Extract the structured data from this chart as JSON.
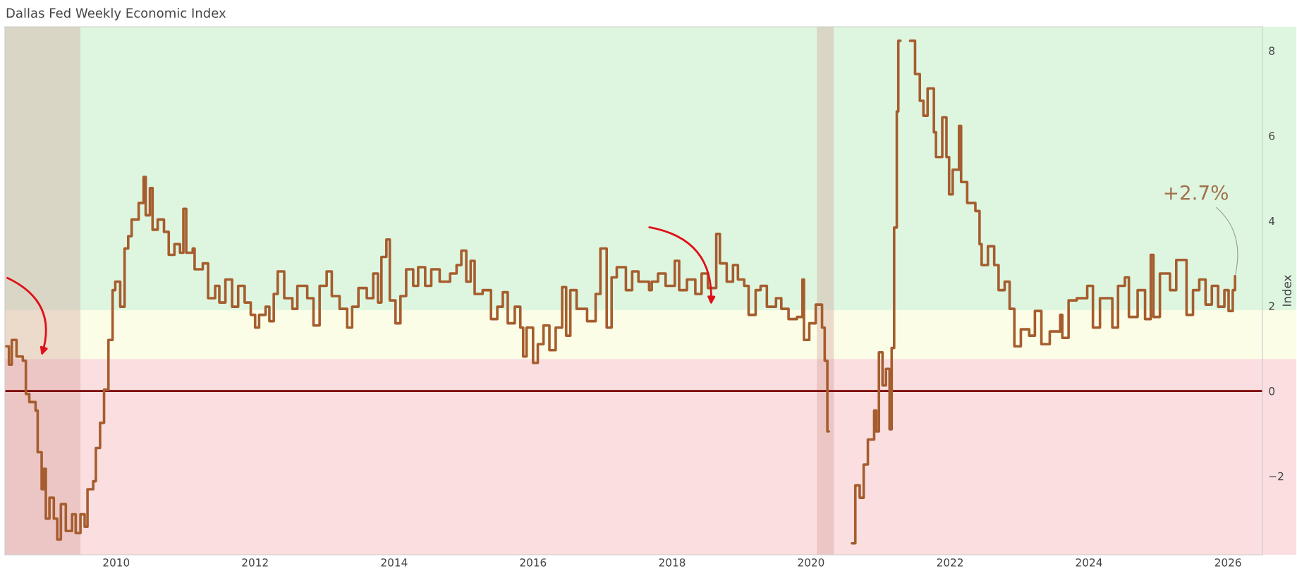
{
  "chart_data": {
    "type": "step",
    "title": "Dallas Fed Weekly Economic Index",
    "ylabel": "Index",
    "x": [
      "2008-06-02",
      "2008-06-16",
      "2008-07-01",
      "2008-07-26",
      "2008-08-28",
      "2008-09-13",
      "2008-10-01",
      "2008-11-03",
      "2008-11-14",
      "2008-12-05",
      "2008-12-16",
      "2008-12-27",
      "2009-01-15",
      "2009-02-07",
      "2009-02-25",
      "2009-03-16",
      "2009-04-11",
      "2009-05-14",
      "2009-06-02",
      "2009-06-27",
      "2009-07-19",
      "2009-08-03",
      "2009-09-02",
      "2009-09-16",
      "2009-10-08",
      "2009-10-29",
      "2009-11-21",
      "2009-12-13",
      "2009-12-27",
      "2010-01-22",
      "2010-02-14",
      "2010-03-05",
      "2010-03-23",
      "2010-04-29",
      "2010-05-25",
      "2010-06-05",
      "2010-06-27",
      "2010-07-11",
      "2010-08-07",
      "2010-09-09",
      "2010-10-04",
      "2010-11-03",
      "2010-12-02",
      "2010-12-20",
      "2011-01-04",
      "2011-02-07",
      "2011-02-17",
      "2011-04-01",
      "2011-04-29",
      "2011-06-05",
      "2011-06-27",
      "2011-07-29",
      "2011-09-02",
      "2011-10-04",
      "2011-11-07",
      "2011-12-09",
      "2012-01-01",
      "2012-01-22",
      "2012-02-25",
      "2012-03-16",
      "2012-04-08",
      "2012-04-29",
      "2012-06-02",
      "2012-07-15",
      "2012-08-10",
      "2012-10-01",
      "2012-11-03",
      "2012-12-05",
      "2013-01-11",
      "2013-02-07",
      "2013-03-20",
      "2013-04-29",
      "2013-05-25",
      "2013-06-27",
      "2013-08-10",
      "2013-09-13",
      "2013-10-08",
      "2013-10-26",
      "2013-11-21",
      "2013-12-09",
      "2014-01-08",
      "2014-02-03",
      "2014-03-05",
      "2014-04-11",
      "2014-05-07",
      "2014-06-13",
      "2014-07-15",
      "2014-08-28",
      "2014-10-22",
      "2014-11-25",
      "2014-12-20",
      "2015-01-15",
      "2015-02-07",
      "2015-02-28",
      "2015-04-11",
      "2015-05-25",
      "2015-06-27",
      "2015-07-26",
      "2015-08-21",
      "2015-09-27",
      "2015-10-26",
      "2015-11-10",
      "2015-11-28",
      "2016-01-01",
      "2016-01-26",
      "2016-02-25",
      "2016-03-27",
      "2016-04-29",
      "2016-06-02",
      "2016-06-23",
      "2016-07-15",
      "2016-08-17",
      "2016-10-11",
      "2016-11-25",
      "2016-12-20",
      "2017-01-22",
      "2017-02-17",
      "2017-03-16",
      "2017-05-03",
      "2017-06-05",
      "2017-07-08",
      "2017-09-02",
      "2017-09-16",
      "2017-10-19",
      "2017-11-28",
      "2018-01-15",
      "2018-02-07",
      "2018-03-20",
      "2018-05-03",
      "2018-06-05",
      "2018-07-08",
      "2018-08-21",
      "2018-09-09",
      "2018-10-15",
      "2018-11-17",
      "2018-12-13",
      "2019-01-15",
      "2019-02-07",
      "2019-03-16",
      "2019-04-11",
      "2019-05-14",
      "2019-07-01",
      "2019-07-29",
      "2019-09-05",
      "2019-10-19",
      "2019-11-17",
      "2019-11-25",
      "2019-12-23",
      "2020-01-26",
      "2020-02-28",
      "2020-03-13",
      "2020-03-27",
      "2020-04-04",
      "2020-08-03",
      "2020-08-21",
      "2020-09-13",
      "2020-10-04",
      "2020-10-26",
      "2020-11-28",
      "2020-12-09",
      "2020-12-23",
      "2021-01-11",
      "2021-01-29",
      "2021-02-17",
      "2021-02-28",
      "2021-03-13",
      "2021-03-27",
      "2021-04-04",
      "2021-04-15",
      "2021-06-05",
      "2021-07-01",
      "2021-07-26",
      "2021-08-14",
      "2021-09-05",
      "2021-10-08",
      "2021-10-19",
      "2021-11-21",
      "2021-12-13",
      "2021-12-27",
      "2022-01-15",
      "2022-02-17",
      "2022-02-28",
      "2022-04-01",
      "2022-05-14",
      "2022-06-05",
      "2022-06-16",
      "2022-07-19",
      "2022-08-21",
      "2022-09-13",
      "2022-10-15",
      "2022-11-10",
      "2022-12-05",
      "2023-01-08",
      "2023-02-21",
      "2023-03-23",
      "2023-04-26",
      "2023-06-09",
      "2023-08-03",
      "2023-08-14",
      "2023-09-16",
      "2023-10-29",
      "2023-12-23",
      "2024-01-22",
      "2024-02-28",
      "2024-05-03",
      "2024-06-02",
      "2024-07-08",
      "2024-07-29",
      "2024-09-13",
      "2024-10-22",
      "2024-11-21",
      "2024-12-05",
      "2025-01-08",
      "2025-03-02",
      "2025-04-04",
      "2025-05-28",
      "2025-07-01",
      "2025-08-03",
      "2025-09-05",
      "2025-10-08",
      "2025-11-10",
      "2025-12-13",
      "2026-01-04",
      "2026-01-26",
      "2026-02-07"
    ],
    "series": [
      {
        "color": "#a65d2e",
        "values": [
          1.05,
          0.62,
          1.2,
          0.81,
          0.71,
          -0.07,
          -0.26,
          -0.46,
          -1.44,
          -2.31,
          -1.83,
          -3.0,
          -2.51,
          -3.0,
          -3.49,
          -2.66,
          -3.29,
          -2.9,
          -3.34,
          -2.9,
          -3.19,
          -2.31,
          -2.12,
          -1.34,
          -0.75,
          0.03,
          1.2,
          2.37,
          2.57,
          1.98,
          3.35,
          3.64,
          4.03,
          4.42,
          5.03,
          4.13,
          4.77,
          3.79,
          4.03,
          3.74,
          3.2,
          3.45,
          3.25,
          4.28,
          3.25,
          3.35,
          2.86,
          3.0,
          2.18,
          2.47,
          2.08,
          2.62,
          1.98,
          2.47,
          2.08,
          1.79,
          1.49,
          1.79,
          1.98,
          1.64,
          2.28,
          2.81,
          2.18,
          1.93,
          2.47,
          2.18,
          1.54,
          2.47,
          2.81,
          2.23,
          1.93,
          1.49,
          1.98,
          2.42,
          2.18,
          2.76,
          2.08,
          3.15,
          3.56,
          2.13,
          1.59,
          2.23,
          2.86,
          2.47,
          2.91,
          2.47,
          2.86,
          2.57,
          2.76,
          2.96,
          3.3,
          2.57,
          3.06,
          2.28,
          2.37,
          1.69,
          1.98,
          2.32,
          1.59,
          1.98,
          1.49,
          0.81,
          1.49,
          0.66,
          1.1,
          1.54,
          0.96,
          1.49,
          2.44,
          1.3,
          2.37,
          1.93,
          1.64,
          2.28,
          3.35,
          1.49,
          2.67,
          2.91,
          2.37,
          2.81,
          2.57,
          2.37,
          2.57,
          2.76,
          2.47,
          3.06,
          2.37,
          2.62,
          2.28,
          2.76,
          2.42,
          3.69,
          3.0,
          2.57,
          2.96,
          2.62,
          2.47,
          1.79,
          2.37,
          2.47,
          1.98,
          2.18,
          1.93,
          1.69,
          1.74,
          2.62,
          1.2,
          1.59,
          2.03,
          1.49,
          0.71,
          -0.95,
          null,
          -3.58,
          -2.22,
          -2.51,
          -1.73,
          -1.14,
          -0.46,
          -0.95,
          0.91,
          0.13,
          0.52,
          -0.9,
          1.01,
          3.84,
          6.57,
          8.23,
          null,
          8.23,
          7.45,
          6.82,
          6.47,
          7.11,
          6.08,
          5.5,
          6.43,
          5.5,
          4.62,
          5.2,
          6.23,
          4.91,
          4.42,
          4.23,
          3.45,
          2.96,
          3.4,
          2.96,
          2.37,
          2.57,
          1.93,
          1.05,
          1.45,
          1.3,
          1.88,
          1.1,
          1.4,
          1.79,
          1.25,
          2.13,
          2.18,
          2.47,
          1.49,
          2.18,
          1.49,
          2.47,
          2.67,
          1.74,
          2.37,
          1.69,
          3.2,
          1.74,
          2.76,
          2.37,
          3.08,
          1.79,
          2.37,
          2.62,
          2.03,
          2.47,
          1.98,
          2.37,
          1.88,
          2.37,
          2.7
        ]
      }
    ],
    "xlim": [
      "2008-05-26",
      "2026-07-01"
    ],
    "ylim": [
      -3.85,
      8.56
    ],
    "xticks": [
      {
        "value": "2010",
        "label": "2010"
      },
      {
        "value": "2012",
        "label": "2012"
      },
      {
        "value": "2014",
        "label": "2014"
      },
      {
        "value": "2016",
        "label": "2016"
      },
      {
        "value": "2018",
        "label": "2018"
      },
      {
        "value": "2020",
        "label": "2020"
      },
      {
        "value": "2022",
        "label": "2022"
      },
      {
        "value": "2024",
        "label": "2024"
      },
      {
        "value": "2026",
        "label": "2026"
      }
    ],
    "yticks": [
      -2,
      0,
      2,
      4,
      6,
      8
    ],
    "bands": [
      {
        "axis": "y",
        "from": 1.9,
        "to": 8.56,
        "color": "#def6e0"
      },
      {
        "axis": "y",
        "from": 0.75,
        "to": 1.9,
        "color": "#fbfde6"
      },
      {
        "axis": "y",
        "from": -3.85,
        "to": 0.75,
        "color": "#fbdedf"
      },
      {
        "axis": "x",
        "from": "2008-05-26",
        "to": "2009-06-27",
        "color": "#d29a96"
      },
      {
        "axis": "x",
        "from": "2020-02-01",
        "to": "2020-04-30",
        "color": "#d29a96"
      }
    ],
    "ref_lines": [
      {
        "axis": "y",
        "value": 0,
        "color": "#7b0000"
      }
    ],
    "annotations": [
      {
        "text": "+2.7%",
        "x": "2026-02-07",
        "y": 2.7
      }
    ],
    "grid": false,
    "legend": false
  }
}
